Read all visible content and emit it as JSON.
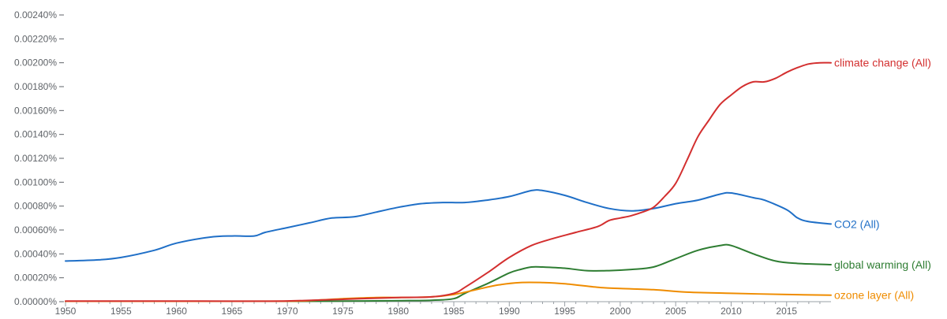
{
  "chart_data": {
    "type": "line",
    "title": "",
    "xlabel": "",
    "ylabel": "",
    "xlim": [
      1950,
      2019
    ],
    "ylim": [
      0,
      0.0024
    ],
    "grid": false,
    "legend": "inline-right",
    "x_ticks": [
      "1950",
      "1955",
      "1960",
      "1965",
      "1970",
      "1975",
      "1980",
      "1985",
      "1990",
      "1995",
      "2000",
      "2005",
      "2010",
      "2015"
    ],
    "y_ticks": [
      "0.00000%",
      "0.00020%",
      "0.00040%",
      "0.00060%",
      "0.00080%",
      "0.00100%",
      "0.00120%",
      "0.00140%",
      "0.00160%",
      "0.00180%",
      "0.00200%",
      "0.00220%",
      "0.00240%"
    ],
    "y_tick_values": [
      0,
      0.0002,
      0.0004,
      0.0006,
      0.0008,
      0.001,
      0.0012,
      0.0014,
      0.0016,
      0.0018,
      0.002,
      0.0022,
      0.0024
    ],
    "series": [
      {
        "name": "climate change (All)",
        "color": "#d32f2f",
        "points": [
          [
            1950,
            5e-06
          ],
          [
            1955,
            5e-06
          ],
          [
            1960,
            5e-06
          ],
          [
            1965,
            4e-06
          ],
          [
            1970,
            6e-06
          ],
          [
            1975,
            2e-05
          ],
          [
            1980,
            3.5e-05
          ],
          [
            1983,
            4e-05
          ],
          [
            1985,
            7e-05
          ],
          [
            1986,
            0.00012
          ],
          [
            1988,
            0.00024
          ],
          [
            1990,
            0.00037
          ],
          [
            1992,
            0.00047
          ],
          [
            1994,
            0.00053
          ],
          [
            1996,
            0.00058
          ],
          [
            1998,
            0.00063
          ],
          [
            1999,
            0.00068
          ],
          [
            2000,
            0.0007
          ],
          [
            2001,
            0.00072
          ],
          [
            2002,
            0.00075
          ],
          [
            2003,
            0.00079
          ],
          [
            2004,
            0.00088
          ],
          [
            2005,
            0.00099
          ],
          [
            2006,
            0.00118
          ],
          [
            2007,
            0.00138
          ],
          [
            2008,
            0.00152
          ],
          [
            2009,
            0.00165
          ],
          [
            2010,
            0.00173
          ],
          [
            2011,
            0.0018
          ],
          [
            2012,
            0.00184
          ],
          [
            2013,
            0.00184
          ],
          [
            2014,
            0.00187
          ],
          [
            2015,
            0.00192
          ],
          [
            2016,
            0.00196
          ],
          [
            2017,
            0.00199
          ],
          [
            2018,
            0.002
          ],
          [
            2019,
            0.002
          ]
        ]
      },
      {
        "name": "CO2 (All)",
        "color": "#1f6fc7",
        "points": [
          [
            1950,
            0.00034
          ],
          [
            1953,
            0.00035
          ],
          [
            1955,
            0.00037
          ],
          [
            1958,
            0.00043
          ],
          [
            1960,
            0.00049
          ],
          [
            1963,
            0.00054
          ],
          [
            1965,
            0.00055
          ],
          [
            1967,
            0.00055
          ],
          [
            1968,
            0.00058
          ],
          [
            1970,
            0.00062
          ],
          [
            1972,
            0.00066
          ],
          [
            1974,
            0.0007
          ],
          [
            1976,
            0.00071
          ],
          [
            1978,
            0.00075
          ],
          [
            1980,
            0.00079
          ],
          [
            1982,
            0.00082
          ],
          [
            1984,
            0.00083
          ],
          [
            1986,
            0.00083
          ],
          [
            1988,
            0.00085
          ],
          [
            1990,
            0.00088
          ],
          [
            1992,
            0.00093
          ],
          [
            1993,
            0.00093
          ],
          [
            1995,
            0.00089
          ],
          [
            1997,
            0.00083
          ],
          [
            1999,
            0.00078
          ],
          [
            2001,
            0.00076
          ],
          [
            2003,
            0.00078
          ],
          [
            2005,
            0.00082
          ],
          [
            2007,
            0.00085
          ],
          [
            2009,
            0.0009
          ],
          [
            2010,
            0.00091
          ],
          [
            2012,
            0.00087
          ],
          [
            2013,
            0.00085
          ],
          [
            2015,
            0.00077
          ],
          [
            2016,
            0.0007
          ],
          [
            2017,
            0.00067
          ],
          [
            2019,
            0.00065
          ]
        ]
      },
      {
        "name": "global warming (All)",
        "color": "#2e7d32",
        "points": [
          [
            1950,
            3e-06
          ],
          [
            1960,
            3e-06
          ],
          [
            1970,
            3e-06
          ],
          [
            1975,
            5e-06
          ],
          [
            1980,
            8e-06
          ],
          [
            1983,
            1.2e-05
          ],
          [
            1985,
            2.5e-05
          ],
          [
            1986,
            7e-05
          ],
          [
            1988,
            0.00015
          ],
          [
            1990,
            0.00024
          ],
          [
            1991,
            0.00027
          ],
          [
            1992,
            0.00029
          ],
          [
            1993,
            0.00029
          ],
          [
            1995,
            0.00028
          ],
          [
            1997,
            0.00026
          ],
          [
            1999,
            0.00026
          ],
          [
            2001,
            0.00027
          ],
          [
            2003,
            0.00029
          ],
          [
            2005,
            0.00036
          ],
          [
            2007,
            0.00043
          ],
          [
            2009,
            0.00047
          ],
          [
            2010,
            0.00047
          ],
          [
            2012,
            0.0004
          ],
          [
            2014,
            0.00034
          ],
          [
            2016,
            0.00032
          ],
          [
            2019,
            0.00031
          ]
        ]
      },
      {
        "name": "ozone layer (All)",
        "color": "#ef8c00",
        "points": [
          [
            1950,
            3e-06
          ],
          [
            1960,
            3e-06
          ],
          [
            1970,
            4e-06
          ],
          [
            1973,
            1.5e-05
          ],
          [
            1975,
            2.5e-05
          ],
          [
            1978,
            3.5e-05
          ],
          [
            1980,
            3.5e-05
          ],
          [
            1983,
            4e-05
          ],
          [
            1985,
            6e-05
          ],
          [
            1987,
            0.0001
          ],
          [
            1989,
            0.00014
          ],
          [
            1991,
            0.00016
          ],
          [
            1993,
            0.00016
          ],
          [
            1995,
            0.00015
          ],
          [
            1998,
            0.00012
          ],
          [
            2000,
            0.00011
          ],
          [
            2003,
            0.0001
          ],
          [
            2006,
            8e-05
          ],
          [
            2010,
            7e-05
          ],
          [
            2015,
            6e-05
          ],
          [
            2019,
            5.5e-05
          ]
        ]
      }
    ]
  }
}
